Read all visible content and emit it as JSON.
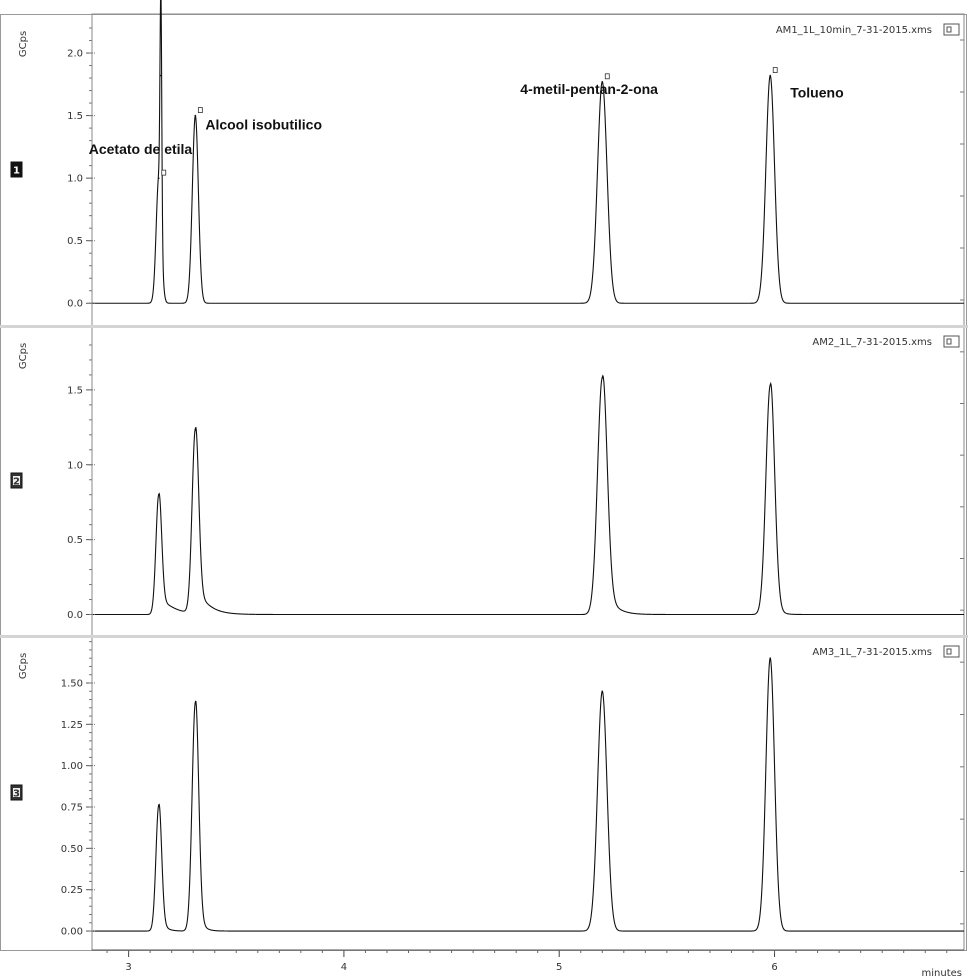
{
  "chart_data": {
    "type": "line",
    "xlabel": "minutes",
    "xlim": [
      2.83,
      6.88
    ],
    "x_ticks": [
      3,
      4,
      5,
      6
    ],
    "panels": [
      {
        "id": 1,
        "badge": "1",
        "badge_dark": true,
        "file": "AM1_1L_10min_7-31-2015.xms",
        "ylabel": "GCps",
        "ylim": [
          -0.07,
          2.28
        ],
        "y_ticks": [
          0.0,
          0.5,
          1.0,
          1.5,
          2.0
        ],
        "y_tick_labels": [
          "0.0",
          "0.5",
          "1.0",
          "1.5",
          "2.0"
        ],
        "peaks": [
          {
            "rt": 3.14,
            "height": 1.0,
            "width": 0.012,
            "tail": 0
          },
          {
            "rt": 3.15,
            "height": 1.82,
            "width": 0.004,
            "tail": 0
          },
          {
            "rt": 3.31,
            "height": 1.5,
            "width": 0.014,
            "tail": 0
          },
          {
            "rt": 5.2,
            "height": 1.77,
            "width": 0.022,
            "tail": 0
          },
          {
            "rt": 5.98,
            "height": 1.82,
            "width": 0.02,
            "tail": 0
          }
        ],
        "annotations": [
          {
            "text": "Acetato de etila",
            "rt": 3.14
          },
          {
            "text": "Alcool isobutilico",
            "rt": 3.31
          },
          {
            "text": "4-metil-pentan-2-ona",
            "rt": 5.2
          },
          {
            "text": "Tolueno",
            "rt": 5.98
          }
        ]
      },
      {
        "id": 2,
        "badge": "2",
        "badge_dark": false,
        "file": "AM2_1L_7-31-2015.xms",
        "ylabel": "GCps",
        "ylim": [
          -0.05,
          1.9
        ],
        "y_ticks": [
          0.0,
          0.5,
          1.0,
          1.5
        ],
        "y_tick_labels": [
          "0.0",
          "0.5",
          "1.0",
          "1.5"
        ],
        "peaks": [
          {
            "rt": 3.14,
            "height": 0.8,
            "width": 0.013,
            "tail": 0.06
          },
          {
            "rt": 3.31,
            "height": 1.23,
            "width": 0.015,
            "tail": 0.05
          },
          {
            "rt": 5.2,
            "height": 1.58,
            "width": 0.022,
            "tail": 0.04
          },
          {
            "rt": 5.98,
            "height": 1.53,
            "width": 0.02,
            "tail": 0.02
          }
        ]
      },
      {
        "id": 3,
        "badge": "3",
        "badge_dark": false,
        "file": "AM3_1L_7-31-2015.xms",
        "ylabel": "GCps",
        "ylim": [
          -0.03,
          1.76
        ],
        "y_ticks": [
          0.0,
          0.25,
          0.5,
          0.75,
          1.0,
          1.25,
          1.5
        ],
        "y_tick_labels": [
          "0.00",
          "0.25",
          "0.50",
          "0.75",
          "1.00",
          "1.25",
          "1.50"
        ],
        "peaks": [
          {
            "rt": 3.14,
            "height": 0.76,
            "width": 0.013,
            "tail": 0.02
          },
          {
            "rt": 3.31,
            "height": 1.38,
            "width": 0.015,
            "tail": 0.02
          },
          {
            "rt": 5.2,
            "height": 1.45,
            "width": 0.022,
            "tail": 0
          },
          {
            "rt": 5.98,
            "height": 1.65,
            "width": 0.02,
            "tail": 0
          }
        ]
      }
    ]
  }
}
